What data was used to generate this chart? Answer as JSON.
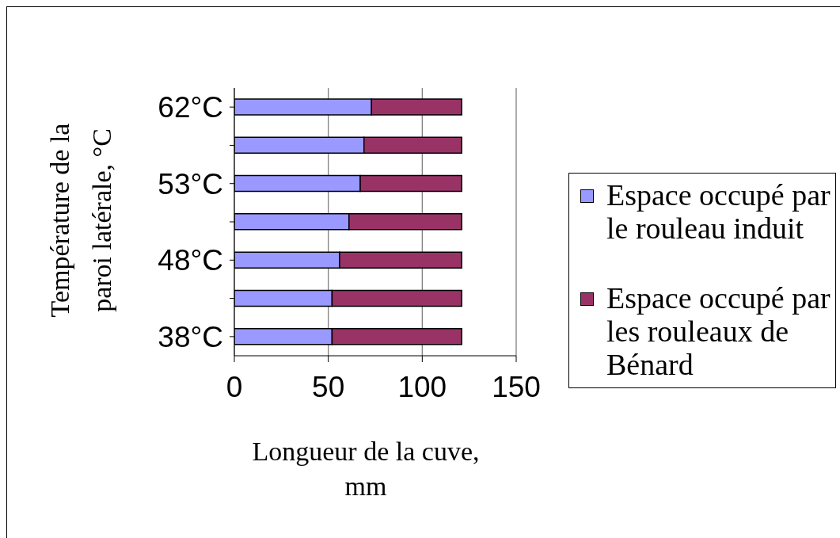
{
  "chart_data": {
    "type": "bar",
    "orientation": "horizontal",
    "stacked": true,
    "xlabel": "Longueur de la cuve, mm",
    "ylabel": "Température de la paroi latérale, °C",
    "categories": [
      "62°C",
      null,
      "53°C",
      null,
      "48°C",
      null,
      "38°C"
    ],
    "series": [
      {
        "name": "Espace occupé par le rouleau induit",
        "color": "#9999ff",
        "values": [
          73,
          69,
          67,
          61,
          56,
          52,
          52
        ]
      },
      {
        "name": "Espace occupé par les rouleaux de Bénard",
        "color": "#993366",
        "values": [
          48,
          52,
          54,
          60,
          65,
          69,
          69
        ]
      }
    ],
    "xlim": [
      0,
      150
    ],
    "xticks": [
      0,
      50,
      100,
      150
    ],
    "grid": "x",
    "legend": "right"
  }
}
